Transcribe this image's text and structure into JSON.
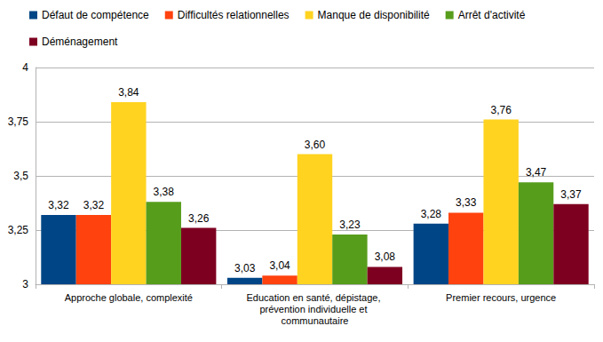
{
  "chart_data": {
    "type": "bar",
    "categories": [
      "Approche globale, complexité",
      "Education en santé, dépistage, prévention individuelle et communautaire",
      "Premier recours, urgence"
    ],
    "series": [
      {
        "name": "Défaut de compétence",
        "color": "#004586",
        "values": [
          3.32,
          3.03,
          3.28
        ],
        "value_labels": [
          "3,32",
          "3,03",
          "3,28"
        ]
      },
      {
        "name": "Difficultés relationnelles",
        "color": "#ff420e",
        "values": [
          3.32,
          3.04,
          3.33
        ],
        "value_labels": [
          "3,32",
          "3,04",
          "3,33"
        ]
      },
      {
        "name": "Manque de disponibilité",
        "color": "#ffd320",
        "values": [
          3.84,
          3.6,
          3.76
        ],
        "value_labels": [
          "3,84",
          "3,60",
          "3,76"
        ]
      },
      {
        "name": "Arrêt d'activité",
        "color": "#579d1c",
        "values": [
          3.38,
          3.23,
          3.47
        ],
        "value_labels": [
          "3,38",
          "3,23",
          "3,47"
        ]
      },
      {
        "name": "Déménagement",
        "color": "#7e0021",
        "values": [
          3.26,
          3.08,
          3.37
        ],
        "value_labels": [
          "3,26",
          "3,08",
          "3,37"
        ]
      }
    ],
    "ylim": [
      3,
      4
    ],
    "yticks": [
      3,
      {
        "value": 3.25,
        "label": "3,25"
      },
      {
        "value": 3.5,
        "label": "3,5"
      },
      {
        "value": 3.75,
        "label": "3,75"
      },
      4
    ],
    "grid": true,
    "legend": "top-left",
    "data_labels": true
  }
}
